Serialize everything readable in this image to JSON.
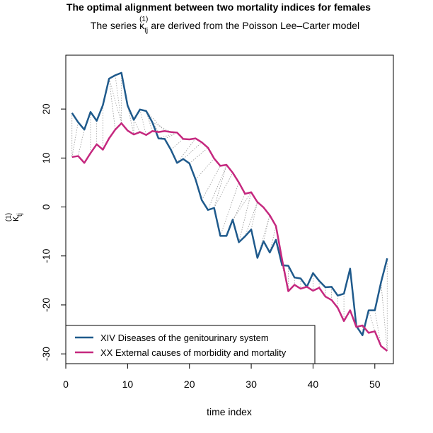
{
  "chart_data": {
    "type": "line",
    "title": "The optimal alignment between two mortality indices for females",
    "subtitle_prefix": "The series ",
    "subtitle_symbol": "κ",
    "subtitle_subscript": "tj",
    "subtitle_superscript": "(1)",
    "subtitle_suffix": " are derived from the Poisson Lee–Carter model",
    "xlabel": "time index",
    "ylabel_symbol": "κ",
    "ylabel_subscript": "tj",
    "ylabel_superscript": "(1)",
    "xlim": [
      0,
      53
    ],
    "ylim": [
      -32,
      31
    ],
    "x_ticks": [
      0,
      10,
      20,
      30,
      40,
      50
    ],
    "y_ticks": [
      -30,
      -20,
      -10,
      0,
      10,
      20
    ],
    "grid": false,
    "legend_position": "bottom-left",
    "colors": {
      "series1": "#1f5a8c",
      "series2": "#c5287f",
      "alignment": "#9a9a9a"
    },
    "x": [
      1,
      2,
      3,
      4,
      5,
      6,
      7,
      8,
      9,
      10,
      11,
      12,
      13,
      14,
      15,
      16,
      17,
      18,
      19,
      20,
      21,
      22,
      23,
      24,
      25,
      26,
      27,
      28,
      29,
      30,
      31,
      32,
      33,
      34,
      35,
      36,
      37,
      38,
      39,
      40,
      41,
      42,
      43,
      44,
      45,
      46,
      47,
      48,
      49,
      50,
      51,
      52
    ],
    "series": [
      {
        "name": "XIV Diseases of the genitourinary system",
        "values": [
          19.2,
          17.3,
          15.8,
          19.4,
          17.6,
          20.8,
          26.2,
          26.9,
          27.4,
          20.7,
          17.8,
          19.9,
          19.6,
          17.3,
          14.0,
          13.9,
          11.7,
          9.0,
          9.8,
          8.9,
          5.6,
          1.4,
          -0.6,
          -0.2,
          -5.9,
          -5.9,
          -2.6,
          -7.2,
          -6.0,
          -4.6,
          -10.4,
          -7.0,
          -9.3,
          -6.7,
          -11.9,
          -12.0,
          -14.4,
          -14.6,
          -16.3,
          -13.5,
          -15.1,
          -16.4,
          -16.3,
          -18.1,
          -17.7,
          -12.6,
          -24.3,
          -26.2,
          -21.1,
          -21.1,
          -15.4,
          -10.5
        ]
      },
      {
        "name": "XX External causes of morbidity and mortality",
        "values": [
          10.2,
          10.4,
          9.0,
          11.0,
          12.8,
          11.7,
          14.0,
          15.8,
          17.1,
          15.6,
          14.8,
          15.3,
          14.7,
          15.5,
          15.3,
          15.5,
          15.3,
          15.2,
          13.9,
          13.8,
          14.0,
          13.2,
          12.1,
          9.9,
          8.4,
          8.6,
          7.0,
          5.0,
          2.7,
          3.0,
          1.0,
          -0.1,
          -1.7,
          -3.9,
          -10.8,
          -17.2,
          -15.9,
          -16.7,
          -16.3,
          -17.1,
          -16.5,
          -18.3,
          -19.0,
          -20.6,
          -23.3,
          -21.1,
          -24.5,
          -24.2,
          -25.7,
          -25.4,
          -28.4,
          -29.4
        ]
      }
    ],
    "alignment_pairs": [
      [
        1,
        1
      ],
      [
        2,
        1
      ],
      [
        3,
        2
      ],
      [
        4,
        4
      ],
      [
        5,
        5
      ],
      [
        6,
        6
      ],
      [
        7,
        8
      ],
      [
        7,
        9
      ],
      [
        8,
        9
      ],
      [
        9,
        9
      ],
      [
        10,
        11
      ],
      [
        11,
        11
      ],
      [
        11,
        12
      ],
      [
        12,
        13
      ],
      [
        13,
        14
      ],
      [
        13,
        15
      ],
      [
        13,
        16
      ],
      [
        14,
        17
      ],
      [
        15,
        18
      ],
      [
        16,
        18
      ],
      [
        17,
        19
      ],
      [
        18,
        21
      ],
      [
        19,
        22
      ],
      [
        20,
        23
      ],
      [
        21,
        24
      ],
      [
        22,
        25
      ],
      [
        23,
        26
      ],
      [
        24,
        26
      ],
      [
        24,
        27
      ],
      [
        25,
        28
      ],
      [
        26,
        29
      ],
      [
        27,
        30
      ],
      [
        28,
        30
      ],
      [
        29,
        31
      ],
      [
        30,
        31
      ],
      [
        31,
        33
      ],
      [
        32,
        33
      ],
      [
        33,
        34
      ],
      [
        34,
        35
      ],
      [
        35,
        36
      ],
      [
        36,
        36
      ],
      [
        37,
        37
      ],
      [
        38,
        38
      ],
      [
        39,
        39
      ],
      [
        40,
        40
      ],
      [
        41,
        41
      ],
      [
        42,
        42
      ],
      [
        43,
        43
      ],
      [
        44,
        44
      ],
      [
        45,
        45
      ],
      [
        46,
        47
      ],
      [
        47,
        47
      ],
      [
        48,
        48
      ],
      [
        49,
        50
      ],
      [
        50,
        51
      ],
      [
        51,
        52
      ],
      [
        52,
        52
      ]
    ]
  }
}
